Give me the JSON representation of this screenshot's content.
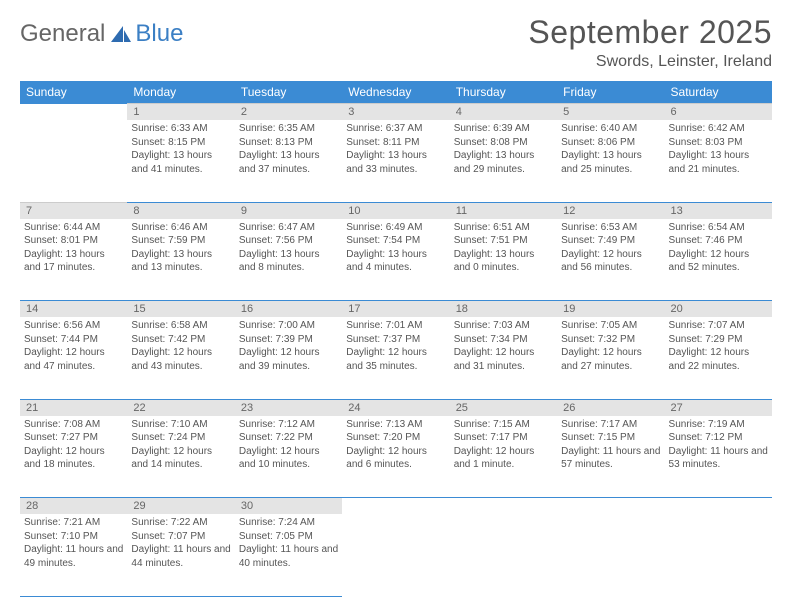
{
  "logo": {
    "text1": "General",
    "text2": "Blue"
  },
  "title": "September 2025",
  "location": "Swords, Leinster, Ireland",
  "colors": {
    "header_bg": "#3b8bd4",
    "header_text": "#ffffff",
    "daynum_bg": "#e4e4e4",
    "text": "#555555",
    "rule": "#3b8bd4"
  },
  "day_headers": [
    "Sunday",
    "Monday",
    "Tuesday",
    "Wednesday",
    "Thursday",
    "Friday",
    "Saturday"
  ],
  "weeks": [
    [
      null,
      {
        "n": "1",
        "sr": "6:33 AM",
        "ss": "8:15 PM",
        "dl": "13 hours and 41 minutes."
      },
      {
        "n": "2",
        "sr": "6:35 AM",
        "ss": "8:13 PM",
        "dl": "13 hours and 37 minutes."
      },
      {
        "n": "3",
        "sr": "6:37 AM",
        "ss": "8:11 PM",
        "dl": "13 hours and 33 minutes."
      },
      {
        "n": "4",
        "sr": "6:39 AM",
        "ss": "8:08 PM",
        "dl": "13 hours and 29 minutes."
      },
      {
        "n": "5",
        "sr": "6:40 AM",
        "ss": "8:06 PM",
        "dl": "13 hours and 25 minutes."
      },
      {
        "n": "6",
        "sr": "6:42 AM",
        "ss": "8:03 PM",
        "dl": "13 hours and 21 minutes."
      }
    ],
    [
      {
        "n": "7",
        "sr": "6:44 AM",
        "ss": "8:01 PM",
        "dl": "13 hours and 17 minutes."
      },
      {
        "n": "8",
        "sr": "6:46 AM",
        "ss": "7:59 PM",
        "dl": "13 hours and 13 minutes."
      },
      {
        "n": "9",
        "sr": "6:47 AM",
        "ss": "7:56 PM",
        "dl": "13 hours and 8 minutes."
      },
      {
        "n": "10",
        "sr": "6:49 AM",
        "ss": "7:54 PM",
        "dl": "13 hours and 4 minutes."
      },
      {
        "n": "11",
        "sr": "6:51 AM",
        "ss": "7:51 PM",
        "dl": "13 hours and 0 minutes."
      },
      {
        "n": "12",
        "sr": "6:53 AM",
        "ss": "7:49 PM",
        "dl": "12 hours and 56 minutes."
      },
      {
        "n": "13",
        "sr": "6:54 AM",
        "ss": "7:46 PM",
        "dl": "12 hours and 52 minutes."
      }
    ],
    [
      {
        "n": "14",
        "sr": "6:56 AM",
        "ss": "7:44 PM",
        "dl": "12 hours and 47 minutes."
      },
      {
        "n": "15",
        "sr": "6:58 AM",
        "ss": "7:42 PM",
        "dl": "12 hours and 43 minutes."
      },
      {
        "n": "16",
        "sr": "7:00 AM",
        "ss": "7:39 PM",
        "dl": "12 hours and 39 minutes."
      },
      {
        "n": "17",
        "sr": "7:01 AM",
        "ss": "7:37 PM",
        "dl": "12 hours and 35 minutes."
      },
      {
        "n": "18",
        "sr": "7:03 AM",
        "ss": "7:34 PM",
        "dl": "12 hours and 31 minutes."
      },
      {
        "n": "19",
        "sr": "7:05 AM",
        "ss": "7:32 PM",
        "dl": "12 hours and 27 minutes."
      },
      {
        "n": "20",
        "sr": "7:07 AM",
        "ss": "7:29 PM",
        "dl": "12 hours and 22 minutes."
      }
    ],
    [
      {
        "n": "21",
        "sr": "7:08 AM",
        "ss": "7:27 PM",
        "dl": "12 hours and 18 minutes."
      },
      {
        "n": "22",
        "sr": "7:10 AM",
        "ss": "7:24 PM",
        "dl": "12 hours and 14 minutes."
      },
      {
        "n": "23",
        "sr": "7:12 AM",
        "ss": "7:22 PM",
        "dl": "12 hours and 10 minutes."
      },
      {
        "n": "24",
        "sr": "7:13 AM",
        "ss": "7:20 PM",
        "dl": "12 hours and 6 minutes."
      },
      {
        "n": "25",
        "sr": "7:15 AM",
        "ss": "7:17 PM",
        "dl": "12 hours and 1 minute."
      },
      {
        "n": "26",
        "sr": "7:17 AM",
        "ss": "7:15 PM",
        "dl": "11 hours and 57 minutes."
      },
      {
        "n": "27",
        "sr": "7:19 AM",
        "ss": "7:12 PM",
        "dl": "11 hours and 53 minutes."
      }
    ],
    [
      {
        "n": "28",
        "sr": "7:21 AM",
        "ss": "7:10 PM",
        "dl": "11 hours and 49 minutes."
      },
      {
        "n": "29",
        "sr": "7:22 AM",
        "ss": "7:07 PM",
        "dl": "11 hours and 44 minutes."
      },
      {
        "n": "30",
        "sr": "7:24 AM",
        "ss": "7:05 PM",
        "dl": "11 hours and 40 minutes."
      },
      null,
      null,
      null,
      null
    ]
  ],
  "labels": {
    "sunrise": "Sunrise:",
    "sunset": "Sunset:",
    "daylight": "Daylight:"
  }
}
